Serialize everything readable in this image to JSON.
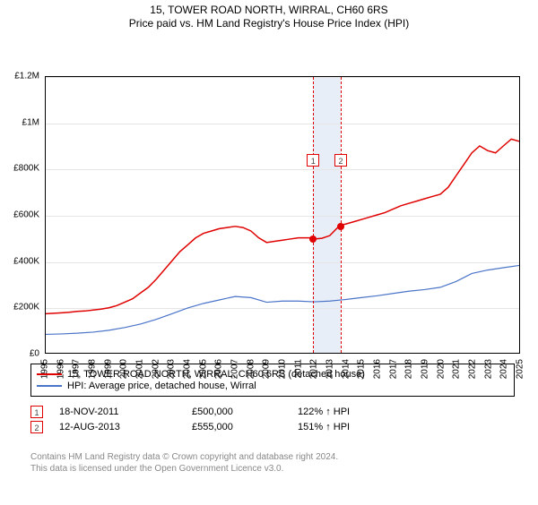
{
  "title": "15, TOWER ROAD NORTH, WIRRAL, CH60 6RS",
  "subtitle": "Price paid vs. HM Land Registry's House Price Index (HPI)",
  "chart": {
    "type": "line",
    "background_color": "#ffffff",
    "grid_color": "#e5e5e5",
    "y": {
      "min": 0,
      "max": 1200000,
      "tick_step": 200000,
      "tick_labels": [
        "£0",
        "£200K",
        "£400K",
        "£600K",
        "£800K",
        "£1M",
        "£1.2M"
      ]
    },
    "x": {
      "years": [
        1995,
        1996,
        1997,
        1998,
        1999,
        2000,
        2001,
        2002,
        2003,
        2004,
        2005,
        2006,
        2007,
        2008,
        2009,
        2010,
        2011,
        2012,
        2013,
        2014,
        2015,
        2016,
        2017,
        2018,
        2019,
        2020,
        2021,
        2022,
        2023,
        2024,
        2025
      ]
    },
    "highlight_band": {
      "from_year": 2011.88,
      "to_year": 2013.62,
      "fill": "#e8eef7"
    },
    "series": [
      {
        "name": "property",
        "color": "#e00000",
        "width": 1.5,
        "points": [
          [
            1995,
            170000
          ],
          [
            1995.5,
            172000
          ],
          [
            1996,
            174000
          ],
          [
            1996.5,
            176000
          ],
          [
            1997,
            180000
          ],
          [
            1997.5,
            182000
          ],
          [
            1998,
            186000
          ],
          [
            1998.5,
            190000
          ],
          [
            1999,
            196000
          ],
          [
            1999.5,
            205000
          ],
          [
            2000,
            220000
          ],
          [
            2000.5,
            235000
          ],
          [
            2001,
            260000
          ],
          [
            2001.5,
            285000
          ],
          [
            2002,
            320000
          ],
          [
            2002.5,
            360000
          ],
          [
            2003,
            400000
          ],
          [
            2003.5,
            440000
          ],
          [
            2004,
            470000
          ],
          [
            2004.5,
            500000
          ],
          [
            2005,
            520000
          ],
          [
            2005.5,
            530000
          ],
          [
            2006,
            540000
          ],
          [
            2006.5,
            545000
          ],
          [
            2007,
            550000
          ],
          [
            2007.5,
            545000
          ],
          [
            2008,
            530000
          ],
          [
            2008.5,
            500000
          ],
          [
            2009,
            480000
          ],
          [
            2009.5,
            485000
          ],
          [
            2010,
            490000
          ],
          [
            2010.5,
            495000
          ],
          [
            2011,
            500000
          ],
          [
            2011.5,
            500000
          ],
          [
            2011.88,
            500000
          ],
          [
            2012,
            495000
          ],
          [
            2012.5,
            498000
          ],
          [
            2013,
            510000
          ],
          [
            2013.5,
            545000
          ],
          [
            2013.62,
            555000
          ],
          [
            2014,
            560000
          ],
          [
            2014.5,
            570000
          ],
          [
            2015,
            580000
          ],
          [
            2015.5,
            590000
          ],
          [
            2016,
            600000
          ],
          [
            2016.5,
            610000
          ],
          [
            2017,
            625000
          ],
          [
            2017.5,
            640000
          ],
          [
            2018,
            650000
          ],
          [
            2018.5,
            660000
          ],
          [
            2019,
            670000
          ],
          [
            2019.5,
            680000
          ],
          [
            2020,
            690000
          ],
          [
            2020.5,
            720000
          ],
          [
            2021,
            770000
          ],
          [
            2021.5,
            820000
          ],
          [
            2022,
            870000
          ],
          [
            2022.5,
            900000
          ],
          [
            2023,
            880000
          ],
          [
            2023.5,
            870000
          ],
          [
            2024,
            900000
          ],
          [
            2024.5,
            930000
          ],
          [
            2025,
            920000
          ]
        ]
      },
      {
        "name": "hpi",
        "color": "#4a74c8",
        "width": 1.2,
        "points": [
          [
            1995,
            80000
          ],
          [
            1996,
            82000
          ],
          [
            1997,
            85000
          ],
          [
            1998,
            90000
          ],
          [
            1999,
            98000
          ],
          [
            2000,
            110000
          ],
          [
            2001,
            125000
          ],
          [
            2002,
            145000
          ],
          [
            2003,
            170000
          ],
          [
            2004,
            195000
          ],
          [
            2005,
            215000
          ],
          [
            2006,
            230000
          ],
          [
            2007,
            245000
          ],
          [
            2008,
            240000
          ],
          [
            2009,
            220000
          ],
          [
            2010,
            225000
          ],
          [
            2011,
            225000
          ],
          [
            2012,
            222000
          ],
          [
            2013,
            225000
          ],
          [
            2014,
            232000
          ],
          [
            2015,
            240000
          ],
          [
            2016,
            248000
          ],
          [
            2017,
            258000
          ],
          [
            2018,
            268000
          ],
          [
            2019,
            275000
          ],
          [
            2020,
            285000
          ],
          [
            2021,
            310000
          ],
          [
            2022,
            345000
          ],
          [
            2023,
            360000
          ],
          [
            2024,
            370000
          ],
          [
            2025,
            380000
          ]
        ]
      }
    ],
    "markers": [
      {
        "label": "1",
        "year": 2011.88,
        "value": 500000,
        "dot_color": "#e00000"
      },
      {
        "label": "2",
        "year": 2013.62,
        "value": 555000,
        "dot_color": "#e00000"
      }
    ]
  },
  "legend": {
    "items": [
      {
        "color": "#e00000",
        "label": "15, TOWER ROAD NORTH, WIRRAL, CH60 6RS (detached house)"
      },
      {
        "color": "#4a74c8",
        "label": "HPI: Average price, detached house, Wirral"
      }
    ]
  },
  "transactions": [
    {
      "num": "1",
      "date": "18-NOV-2011",
      "price": "£500,000",
      "delta": "122% ↑ HPI"
    },
    {
      "num": "2",
      "date": "12-AUG-2013",
      "price": "£555,000",
      "delta": "151% ↑ HPI"
    }
  ],
  "footnote_line1": "Contains HM Land Registry data © Crown copyright and database right 2024.",
  "footnote_line2": "This data is licensed under the Open Government Licence v3.0."
}
